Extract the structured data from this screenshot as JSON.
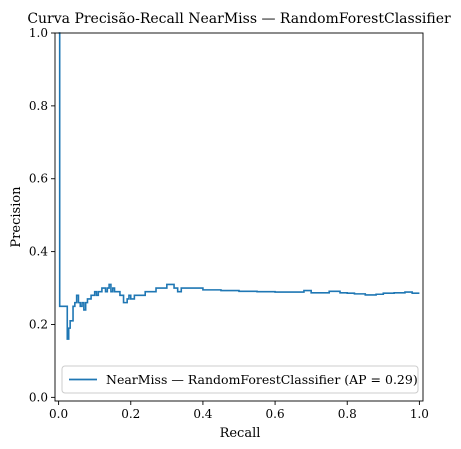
{
  "chart_data": {
    "type": "line",
    "title": "Curva Precisão-Recall NearMiss — RandomForestClassifier",
    "xlabel": "Recall",
    "ylabel": "Precision",
    "xlim": [
      -0.01,
      1.01
    ],
    "ylim": [
      -0.01,
      1.0
    ],
    "xticks": [
      0.0,
      0.2,
      0.4,
      0.6,
      0.8,
      1.0
    ],
    "xtick_labels": [
      "0.0",
      "0.2",
      "0.4",
      "0.6",
      "0.8",
      "1.0"
    ],
    "yticks": [
      0.0,
      0.2,
      0.4,
      0.6,
      0.8,
      1.0
    ],
    "ytick_labels": [
      "0.0",
      "0.2",
      "0.4",
      "0.6",
      "0.8",
      "1.0"
    ],
    "grid": false,
    "legend": "lower-right",
    "series": [
      {
        "name": "NearMiss — RandomForestClassifier (AP = 0.29)",
        "color": "#1f77b4",
        "step": "post",
        "x": [
          0.0,
          0.003,
          0.003,
          0.024,
          0.024,
          0.028,
          0.032,
          0.036,
          0.04,
          0.045,
          0.05,
          0.055,
          0.06,
          0.065,
          0.07,
          0.075,
          0.08,
          0.085,
          0.09,
          0.095,
          0.1,
          0.105,
          0.11,
          0.115,
          0.12,
          0.125,
          0.13,
          0.135,
          0.14,
          0.145,
          0.15,
          0.155,
          0.16,
          0.17,
          0.18,
          0.19,
          0.195,
          0.2,
          0.21,
          0.22,
          0.23,
          0.24,
          0.25,
          0.26,
          0.27,
          0.28,
          0.3,
          0.31,
          0.32,
          0.33,
          0.34,
          0.36,
          0.4,
          0.45,
          0.5,
          0.55,
          0.6,
          0.65,
          0.68,
          0.7,
          0.75,
          0.78,
          0.8,
          0.82,
          0.85,
          0.88,
          0.9,
          0.93,
          0.96,
          0.98,
          1.0
        ],
        "y": [
          1.0,
          1.0,
          0.25,
          0.25,
          0.16,
          0.19,
          0.21,
          0.21,
          0.25,
          0.26,
          0.28,
          0.26,
          0.25,
          0.26,
          0.24,
          0.26,
          0.27,
          0.27,
          0.28,
          0.28,
          0.29,
          0.28,
          0.29,
          0.29,
          0.3,
          0.3,
          0.29,
          0.3,
          0.31,
          0.29,
          0.3,
          0.29,
          0.29,
          0.28,
          0.26,
          0.27,
          0.28,
          0.27,
          0.28,
          0.28,
          0.28,
          0.29,
          0.29,
          0.29,
          0.3,
          0.3,
          0.31,
          0.31,
          0.3,
          0.29,
          0.3,
          0.3,
          0.295,
          0.293,
          0.291,
          0.29,
          0.289,
          0.289,
          0.293,
          0.287,
          0.291,
          0.287,
          0.286,
          0.284,
          0.281,
          0.283,
          0.286,
          0.287,
          0.289,
          0.286,
          0.286
        ]
      }
    ]
  }
}
